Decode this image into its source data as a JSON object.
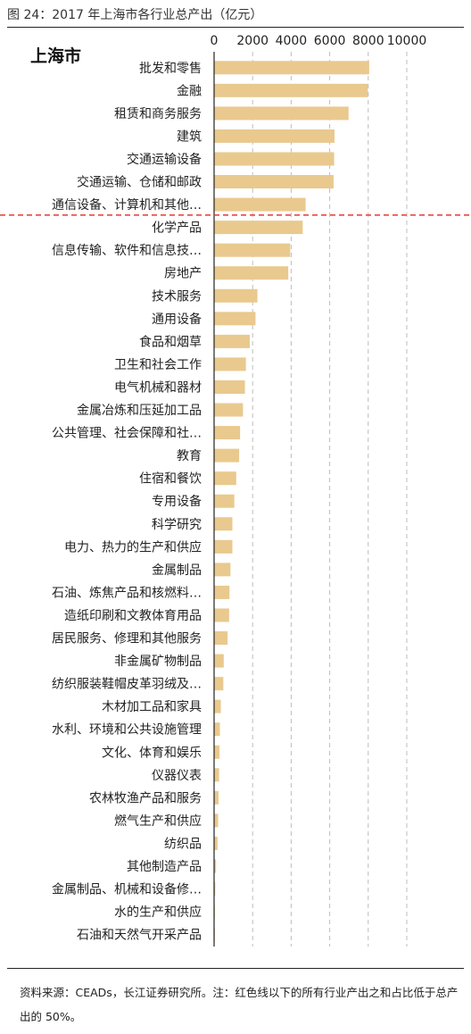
{
  "figure": {
    "title": "图 24：2017 年上海市各行业总产出（亿元）",
    "source": "资料来源：CEADs，长江证券研究所。注：红色线以下的所有行业产出之和占比低于总产出的 50%。"
  },
  "colors": {
    "bar": "#E9C98E",
    "grid": "#BDBDBD",
    "axis": "#222222",
    "cutoff_line": "#E53935"
  },
  "chart_data": {
    "type": "bar",
    "orientation": "horizontal",
    "title": "上海市",
    "xlim": [
      0,
      10000
    ],
    "xticks": [
      0,
      2000,
      4000,
      6000,
      8000,
      10000
    ],
    "xtick_labels": [
      "0",
      "2000",
      "4000",
      "6000",
      "8000",
      "10000"
    ],
    "x_axis_position": "top",
    "grid": "vertical dashed",
    "cutoff_after_category_index": 6,
    "categories": [
      "批发和零售",
      "金融",
      "租赁和商务服务",
      "建筑",
      "交通运输设备",
      "交通运输、仓储和邮政",
      "通信设备、计算机和其他…",
      "化学产品",
      "信息传输、软件和信息技…",
      "房地产",
      "技术服务",
      "通用设备",
      "食品和烟草",
      "卫生和社会工作",
      "电气机械和器材",
      "金属冶炼和压延加工品",
      "公共管理、社会保障和社…",
      "教育",
      "住宿和餐饮",
      "专用设备",
      "科学研究",
      "电力、热力的生产和供应",
      "金属制品",
      "石油、炼焦产品和核燃料…",
      "造纸印刷和文教体育用品",
      "居民服务、修理和其他服务",
      "非金属矿物制品",
      "纺织服装鞋帽皮革羽绒及…",
      "木材加工品和家具",
      "水利、环境和公共设施管理",
      "文化、体育和娱乐",
      "仪器仪表",
      "农林牧渔产品和服务",
      "燃气生产和供应",
      "纺织品",
      "其他制造产品",
      "金属制品、机械和设备修…",
      "水的生产和供应",
      "石油和天然气开采产品"
    ],
    "values": [
      8050,
      7980,
      6980,
      6250,
      6230,
      6200,
      4750,
      4600,
      3950,
      3850,
      2250,
      2150,
      1850,
      1650,
      1600,
      1500,
      1350,
      1300,
      1150,
      1050,
      950,
      950,
      850,
      800,
      780,
      700,
      500,
      480,
      350,
      300,
      280,
      260,
      230,
      210,
      180,
      100,
      60,
      20,
      15
    ]
  }
}
